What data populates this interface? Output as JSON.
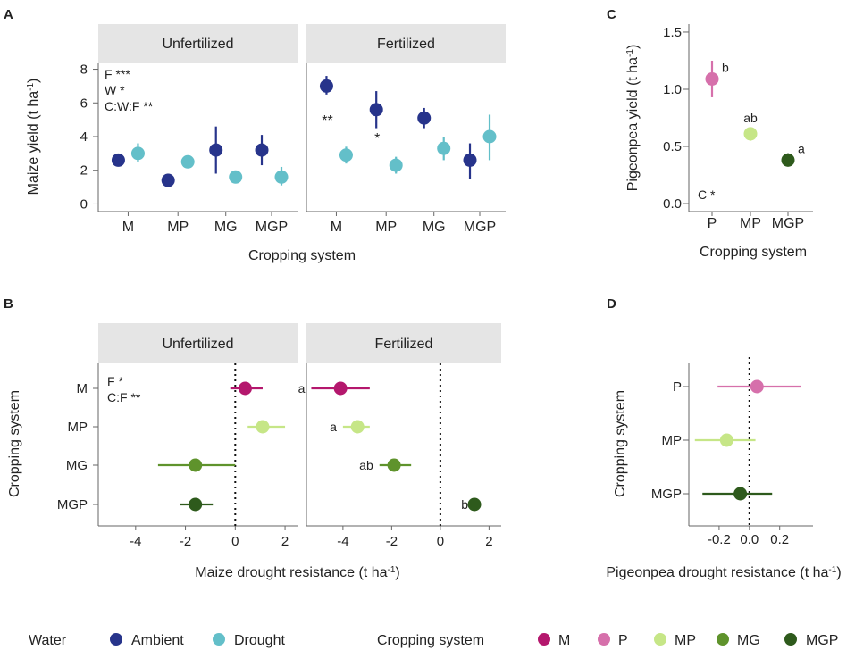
{
  "colors": {
    "ambient": "#27348b",
    "drought": "#63bfc9",
    "M": "#b4176d",
    "P": "#d670ab",
    "MP": "#c6e687",
    "MG": "#5f932c",
    "MGP": "#2e5a1c"
  },
  "chart_data": [
    {
      "panel": "A",
      "type": "scatter",
      "subtype": "point-range",
      "facets": [
        "Unfertilized",
        "Fertilized"
      ],
      "categories": [
        "M",
        "MP",
        "MG",
        "MGP"
      ],
      "ylabel": "Maize yield (t ha-1)",
      "xlabel": "Cropping system",
      "ylim": [
        -0.4,
        8.4
      ],
      "yticks": [
        0,
        2,
        4,
        6,
        8
      ],
      "stats": [
        "F ***",
        "W *",
        "C:W:F **"
      ],
      "series": [
        {
          "name": "Ambient",
          "color_key": "ambient",
          "facet_values": {
            "Unfertilized": [
              {
                "y": 2.6,
                "lo": 2.6,
                "hi": 2.6
              },
              {
                "y": 1.4,
                "lo": 1.0,
                "hi": 1.8
              },
              {
                "y": 3.2,
                "lo": 1.8,
                "hi": 4.6
              },
              {
                "y": 3.2,
                "lo": 2.3,
                "hi": 4.1
              }
            ],
            "Fertilized": [
              {
                "y": 7.0,
                "lo": 6.5,
                "hi": 7.6
              },
              {
                "y": 5.6,
                "lo": 4.5,
                "hi": 6.7
              },
              {
                "y": 5.1,
                "lo": 4.5,
                "hi": 5.7
              },
              {
                "y": 2.6,
                "lo": 1.5,
                "hi": 3.6
              }
            ]
          }
        },
        {
          "name": "Drought",
          "color_key": "drought",
          "facet_values": {
            "Unfertilized": [
              {
                "y": 3.0,
                "lo": 2.5,
                "hi": 3.6
              },
              {
                "y": 2.5,
                "lo": 2.5,
                "hi": 2.5
              },
              {
                "y": 1.6,
                "lo": 1.6,
                "hi": 1.6
              },
              {
                "y": 1.6,
                "lo": 1.1,
                "hi": 2.2
              }
            ],
            "Fertilized": [
              {
                "y": 2.9,
                "lo": 2.4,
                "hi": 3.4
              },
              {
                "y": 2.3,
                "lo": 1.8,
                "hi": 2.8
              },
              {
                "y": 3.3,
                "lo": 2.6,
                "hi": 4.0
              },
              {
                "y": 4.0,
                "lo": 2.6,
                "hi": 5.3
              }
            ]
          }
        }
      ],
      "annotations": [
        {
          "facet": "Fertilized",
          "category": "M",
          "text": "**"
        },
        {
          "facet": "Fertilized",
          "category": "MP",
          "text": "*"
        }
      ]
    },
    {
      "panel": "B",
      "type": "scatter",
      "subtype": "point-range-horizontal",
      "facets": [
        "Unfertilized",
        "Fertilized"
      ],
      "categories": [
        "M",
        "MP",
        "MG",
        "MGP"
      ],
      "ylabel": "Cropping system",
      "xlabel": "Maize drought resistance (t ha-1)",
      "xlim": [
        -5.5,
        2.5
      ],
      "xticks": [
        -4,
        -2,
        0,
        2
      ],
      "stats": [
        "F *",
        "C:F **"
      ],
      "values": {
        "Unfertilized": [
          {
            "category": "M",
            "x": 0.4,
            "lo": -0.2,
            "hi": 1.1,
            "color_key": "M"
          },
          {
            "category": "MP",
            "x": 1.1,
            "lo": 0.5,
            "hi": 2.0,
            "color_key": "MP"
          },
          {
            "category": "MG",
            "x": -1.6,
            "lo": -3.1,
            "hi": 0.0,
            "color_key": "MG"
          },
          {
            "category": "MGP",
            "x": -1.6,
            "lo": -2.2,
            "hi": -0.9,
            "color_key": "MGP"
          }
        ],
        "Fertilized": [
          {
            "category": "M",
            "x": -4.1,
            "lo": -5.3,
            "hi": -2.9,
            "color_key": "M",
            "letter": "a"
          },
          {
            "category": "MP",
            "x": -3.4,
            "lo": -4.0,
            "hi": -2.9,
            "color_key": "MP",
            "letter": "a"
          },
          {
            "category": "MG",
            "x": -1.9,
            "lo": -2.5,
            "hi": -1.2,
            "color_key": "MG",
            "letter": "ab"
          },
          {
            "category": "MGP",
            "x": 1.4,
            "lo": 1.4,
            "hi": 1.4,
            "color_key": "MGP",
            "letter": "b"
          }
        ]
      }
    },
    {
      "panel": "C",
      "type": "scatter",
      "subtype": "point-range",
      "categories": [
        "P",
        "MP",
        "MGP"
      ],
      "ylabel": "Pigeonpea yield (t ha-1)",
      "xlabel": "Cropping system",
      "ylim": [
        -0.07,
        1.57
      ],
      "yticks": [
        0.0,
        0.5,
        1.0,
        1.5
      ],
      "ytick_labels": [
        "0.0",
        "0.5",
        "1.0",
        "1.5"
      ],
      "stats": [
        "C *"
      ],
      "values": [
        {
          "category": "P",
          "y": 1.09,
          "lo": 0.93,
          "hi": 1.25,
          "color_key": "P",
          "letter": "b"
        },
        {
          "category": "MP",
          "y": 0.61,
          "lo": 0.55,
          "hi": 0.66,
          "color_key": "MP",
          "letter": "ab"
        },
        {
          "category": "MGP",
          "y": 0.38,
          "lo": 0.33,
          "hi": 0.44,
          "color_key": "MGP",
          "letter": "a"
        }
      ]
    },
    {
      "panel": "D",
      "type": "scatter",
      "subtype": "point-range-horizontal",
      "categories": [
        "P",
        "MP",
        "MGP"
      ],
      "ylabel": "Cropping system",
      "xlabel": "Pigeonpea drought resistance (t ha-1)",
      "xlim": [
        -0.4,
        0.42
      ],
      "xticks": [
        -0.2,
        0.0,
        0.2
      ],
      "xtick_labels": [
        "-0.2",
        "0.0",
        "0.2"
      ],
      "values": [
        {
          "category": "P",
          "x": 0.05,
          "lo": -0.21,
          "hi": 0.34,
          "color_key": "P"
        },
        {
          "category": "MP",
          "x": -0.15,
          "lo": -0.36,
          "hi": 0.04,
          "color_key": "MP"
        },
        {
          "category": "MGP",
          "x": -0.06,
          "lo": -0.31,
          "hi": 0.15,
          "color_key": "MGP"
        }
      ]
    }
  ],
  "panel_labels": [
    "A",
    "B",
    "C",
    "D"
  ],
  "legend": {
    "water_title": "Water",
    "water_items": [
      {
        "label": "Ambient",
        "color_key": "ambient"
      },
      {
        "label": "Drought",
        "color_key": "drought"
      }
    ],
    "cropping_title": "Cropping system",
    "cropping_items": [
      {
        "label": "M",
        "color_key": "M"
      },
      {
        "label": "P",
        "color_key": "P"
      },
      {
        "label": "MP",
        "color_key": "MP"
      },
      {
        "label": "MG",
        "color_key": "MG"
      },
      {
        "label": "MGP",
        "color_key": "MGP"
      }
    ]
  }
}
